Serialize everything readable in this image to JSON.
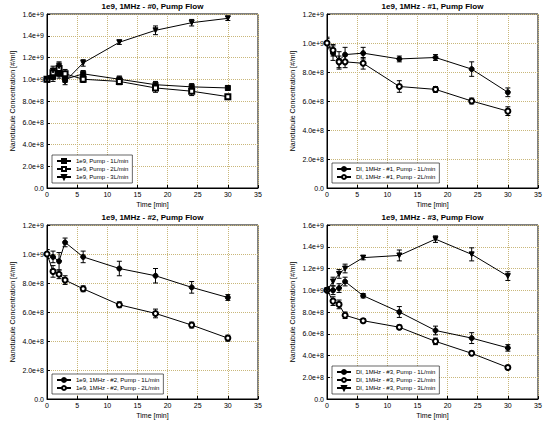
{
  "chart_data": [
    {
      "type": "line",
      "title": "1e9, 1MHz - #0, Pump Flow",
      "x_label": "Time [min]",
      "y_label": "Nanotubule Concentration [#/ml]",
      "x": [
        0,
        1,
        2,
        3,
        6,
        12,
        18,
        24,
        30
      ],
      "xlim": [
        0,
        35
      ],
      "xticks": [
        0,
        5,
        10,
        15,
        20,
        25,
        30,
        35
      ],
      "ylim": [
        0,
        1600000000.0
      ],
      "yticks": [
        {
          "value": 0,
          "label": "0.0"
        },
        {
          "value": 200000000.0,
          "label": "2.0e+8"
        },
        {
          "value": 400000000.0,
          "label": "4.0e+8"
        },
        {
          "value": 600000000.0,
          "label": "6.0e+8"
        },
        {
          "value": 800000000.0,
          "label": "8.0e+8"
        },
        {
          "value": 1000000000.0,
          "label": "1.0e+9"
        },
        {
          "value": 1200000000.0,
          "label": "1.2e+9"
        },
        {
          "value": 1400000000.0,
          "label": "1.4e+9"
        },
        {
          "value": 1600000000.0,
          "label": "1.6e+9"
        }
      ],
      "grid": true,
      "legend": "lower left",
      "series": [
        {
          "name": "1e9, Pump - 1L/min",
          "color": "#000000",
          "marker": "square",
          "values": [
            1000000000.0,
            1020000000.0,
            1050000000.0,
            1000000000.0,
            1050000000.0,
            1000000000.0,
            950000000.0,
            930000000.0,
            920000000.0
          ],
          "errors": [
            30000000.0,
            40000000.0,
            40000000.0,
            30000000.0,
            30000000.0,
            30000000.0,
            30000000.0,
            30000000.0,
            20000000.0
          ]
        },
        {
          "name": "1e9, Pump - 2L/min",
          "color": "#000000",
          "marker": "square-open",
          "values": [
            1000000000.0,
            1060000000.0,
            1100000000.0,
            1050000000.0,
            1000000000.0,
            980000000.0,
            920000000.0,
            890000000.0,
            840000000.0
          ],
          "errors": [
            30000000.0,
            40000000.0,
            50000000.0,
            40000000.0,
            30000000.0,
            30000000.0,
            40000000.0,
            40000000.0,
            20000000.0
          ]
        },
        {
          "name": "1e9, Pump - 3L/min",
          "color": "#000000",
          "marker": "triangle-down",
          "values": [
            1000000000.0,
            1080000000.0,
            1120000000.0,
            980000000.0,
            1150000000.0,
            1340000000.0,
            1450000000.0,
            1520000000.0,
            1560000000.0
          ],
          "errors": [
            30000000.0,
            40000000.0,
            40000000.0,
            30000000.0,
            30000000.0,
            20000000.0,
            40000000.0,
            30000000.0,
            20000000.0
          ]
        }
      ]
    },
    {
      "type": "line",
      "title": "1e9, 1MHz - #1, Pump Flow",
      "x_label": "Time [min]",
      "y_label": "Nanotubule Concentration [#/ml]",
      "x": [
        0,
        1,
        2,
        3,
        6,
        12,
        18,
        24,
        30
      ],
      "xlim": [
        0,
        35
      ],
      "xticks": [
        0,
        5,
        10,
        15,
        20,
        25,
        30,
        35
      ],
      "ylim": [
        0,
        1200000000.0
      ],
      "yticks": [
        {
          "value": 0,
          "label": "0.0"
        },
        {
          "value": 200000000.0,
          "label": "2.0e+8"
        },
        {
          "value": 400000000.0,
          "label": "4.0e+8"
        },
        {
          "value": 600000000.0,
          "label": "6.0e+8"
        },
        {
          "value": 800000000.0,
          "label": "8.0e+8"
        },
        {
          "value": 1000000000.0,
          "label": "1.0e+9"
        },
        {
          "value": 1200000000.0,
          "label": "1.2e+9"
        }
      ],
      "grid": true,
      "legend": "lower left",
      "series": [
        {
          "name": "DI, 1MHz - #1, Pump - 1L/min",
          "color": "#000000",
          "marker": "circle",
          "values": [
            1000000000.0,
            930000000.0,
            880000000.0,
            920000000.0,
            930000000.0,
            890000000.0,
            900000000.0,
            820000000.0,
            660000000.0
          ],
          "errors": [
            40000000.0,
            50000000.0,
            60000000.0,
            50000000.0,
            40000000.0,
            20000000.0,
            20000000.0,
            50000000.0,
            30000000.0
          ]
        },
        {
          "name": "DI, 1MHz - #1, Pump - 2L/min",
          "color": "#000000",
          "marker": "circle-open",
          "values": [
            1000000000.0,
            950000000.0,
            870000000.0,
            870000000.0,
            860000000.0,
            700000000.0,
            680000000.0,
            600000000.0,
            530000000.0
          ],
          "errors": [
            30000000.0,
            40000000.0,
            40000000.0,
            40000000.0,
            40000000.0,
            40000000.0,
            20000000.0,
            20000000.0,
            30000000.0
          ]
        }
      ]
    },
    {
      "type": "line",
      "title": "1e9, 1MHz - #2, Pump Flow",
      "x_label": "Time [min]",
      "y_label": "Nanotubule Concentration [#/ml]",
      "x": [
        0,
        1,
        2,
        3,
        6,
        12,
        18,
        24,
        30
      ],
      "xlim": [
        0,
        35
      ],
      "xticks": [
        0,
        5,
        10,
        15,
        20,
        25,
        30,
        35
      ],
      "ylim": [
        0,
        1200000000.0
      ],
      "yticks": [
        {
          "value": 0,
          "label": "0.0"
        },
        {
          "value": 200000000.0,
          "label": "2.0e+8"
        },
        {
          "value": 400000000.0,
          "label": "4.0e+8"
        },
        {
          "value": 600000000.0,
          "label": "6.0e+8"
        },
        {
          "value": 800000000.0,
          "label": "8.0e+8"
        },
        {
          "value": 1000000000.0,
          "label": "1.0e+9"
        },
        {
          "value": 1200000000.0,
          "label": "1.2e+9"
        }
      ],
      "grid": true,
      "legend": "lower left",
      "series": [
        {
          "name": "1e9, 1MHz - #2, Pump - 1L/min",
          "color": "#000000",
          "marker": "circle",
          "values": [
            1000000000.0,
            980000000.0,
            950000000.0,
            1080000000.0,
            980000000.0,
            900000000.0,
            850000000.0,
            770000000.0,
            700000000.0
          ],
          "errors": [
            30000000.0,
            40000000.0,
            60000000.0,
            30000000.0,
            40000000.0,
            50000000.0,
            50000000.0,
            40000000.0,
            20000000.0
          ]
        },
        {
          "name": "1e9, 1MHz - #2, Pump - 2L/min",
          "color": "#000000",
          "marker": "circle-open",
          "values": [
            1000000000.0,
            880000000.0,
            860000000.0,
            820000000.0,
            760000000.0,
            650000000.0,
            590000000.0,
            510000000.0,
            420000000.0
          ],
          "errors": [
            30000000.0,
            40000000.0,
            30000000.0,
            30000000.0,
            20000000.0,
            20000000.0,
            30000000.0,
            20000000.0,
            20000000.0
          ]
        }
      ]
    },
    {
      "type": "line",
      "title": "1e9, 1MHz - #3, Pump Flow",
      "x_label": "Time [min]",
      "y_label": "Nanotubule Concentration [#/ml]",
      "x": [
        0,
        1,
        2,
        3,
        6,
        12,
        18,
        24,
        30
      ],
      "xlim": [
        0,
        35
      ],
      "xticks": [
        0,
        5,
        10,
        15,
        20,
        25,
        30,
        35
      ],
      "ylim": [
        0,
        1600000000.0
      ],
      "yticks": [
        {
          "value": 0,
          "label": "0.0"
        },
        {
          "value": 200000000.0,
          "label": "2.0e+8"
        },
        {
          "value": 400000000.0,
          "label": "4.0e+8"
        },
        {
          "value": 600000000.0,
          "label": "6.0e+8"
        },
        {
          "value": 800000000.0,
          "label": "8.0e+8"
        },
        {
          "value": 1000000000.0,
          "label": "1.0e+9"
        },
        {
          "value": 1200000000.0,
          "label": "1.2e+9"
        },
        {
          "value": 1400000000.0,
          "label": "1.4e+9"
        },
        {
          "value": 1600000000.0,
          "label": "1.6e+9"
        }
      ],
      "grid": true,
      "legend": "lower left",
      "series": [
        {
          "name": "DI, 1MHz - #3, Pump - 1L/min",
          "color": "#000000",
          "marker": "circle",
          "values": [
            1000000000.0,
            1000000000.0,
            1020000000.0,
            1080000000.0,
            950000000.0,
            800000000.0,
            630000000.0,
            560000000.0,
            470000000.0
          ],
          "errors": [
            30000000.0,
            40000000.0,
            40000000.0,
            40000000.0,
            20000000.0,
            50000000.0,
            40000000.0,
            50000000.0,
            30000000.0
          ]
        },
        {
          "name": "DI, 1MHz - #3, Pump - 2L/min",
          "color": "#000000",
          "marker": "circle-open",
          "values": [
            1000000000.0,
            900000000.0,
            870000000.0,
            770000000.0,
            720000000.0,
            660000000.0,
            530000000.0,
            420000000.0,
            290000000.0
          ],
          "errors": [
            30000000.0,
            40000000.0,
            40000000.0,
            30000000.0,
            20000000.0,
            20000000.0,
            30000000.0,
            20000000.0,
            20000000.0
          ]
        },
        {
          "name": "DI, 1MHz - #3, Pump - 3L/min",
          "color": "#000000",
          "marker": "triangle-down",
          "values": [
            1000000000.0,
            1080000000.0,
            1150000000.0,
            1200000000.0,
            1300000000.0,
            1320000000.0,
            1470000000.0,
            1330000000.0,
            1130000000.0
          ],
          "errors": [
            30000000.0,
            40000000.0,
            40000000.0,
            40000000.0,
            20000000.0,
            50000000.0,
            30000000.0,
            60000000.0,
            40000000.0
          ]
        }
      ]
    }
  ]
}
